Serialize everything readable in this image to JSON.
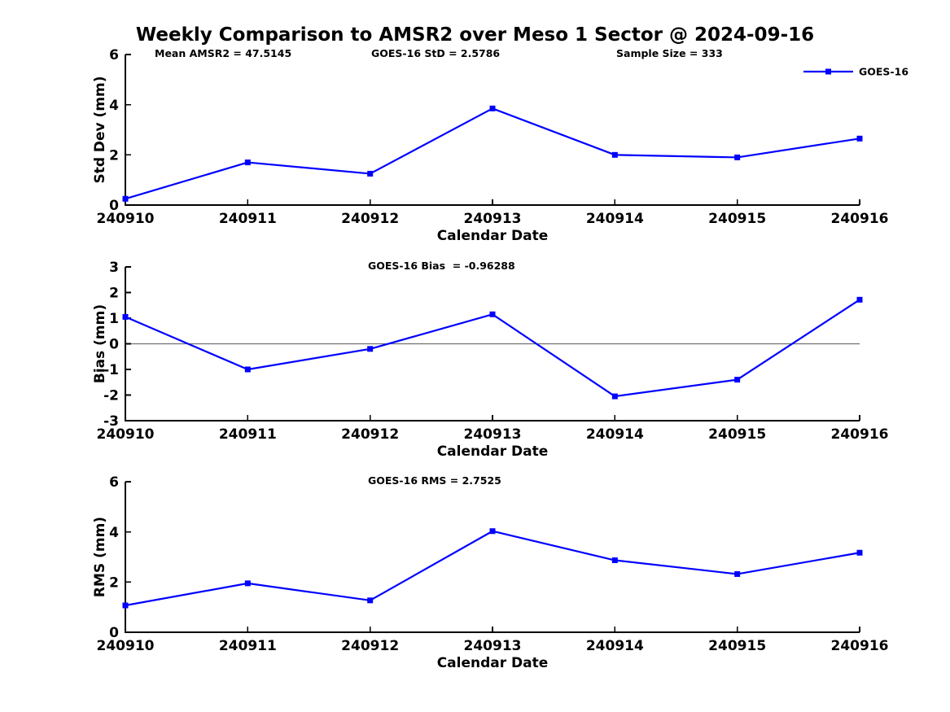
{
  "figure": {
    "title": "Weekly Comparison to AMSR2 over Meso 1 Sector @ 2024-09-16",
    "background": "#FFFFFF"
  },
  "colors": {
    "series_line": "#0000FF",
    "marker": "#0000FF",
    "zero_line": "#707070",
    "axis": "#000000",
    "text": "#000000"
  },
  "legend": {
    "label": "GOES-16",
    "position": "top-right",
    "marker": "square",
    "line_color": "#0000FF"
  },
  "chart_data": [
    {
      "type": "line",
      "name": "std-dev",
      "annotations": [
        "Mean AMSR2 = 47.5145",
        "GOES-16 StD = 2.5786",
        "Sample Size = 333"
      ],
      "xlabel": "Calendar Date",
      "ylabel": "Std Dev (mm)",
      "categories": [
        "240910",
        "240911",
        "240912",
        "240913",
        "240914",
        "240915",
        "240916"
      ],
      "series": [
        {
          "name": "GOES-16",
          "values": [
            0.25,
            1.7,
            1.25,
            3.85,
            2.0,
            1.9,
            2.65
          ]
        }
      ],
      "ylim": [
        0,
        6
      ],
      "yticks": [
        0,
        2,
        4,
        6
      ],
      "grid": false,
      "zero_line": false,
      "show_legend": true
    },
    {
      "type": "line",
      "name": "bias",
      "title": "GOES-16 Bias  = -0.96288",
      "xlabel": "Calendar Date",
      "ylabel": "Bias (mm)",
      "categories": [
        "240910",
        "240911",
        "240912",
        "240913",
        "240914",
        "240915",
        "240916"
      ],
      "series": [
        {
          "name": "GOES-16",
          "values": [
            1.05,
            -1.0,
            -0.2,
            1.15,
            -2.05,
            -1.4,
            1.72
          ]
        }
      ],
      "ylim": [
        -3,
        3
      ],
      "yticks": [
        -3,
        -2,
        -1,
        0,
        1,
        2,
        3
      ],
      "grid": false,
      "zero_line": true,
      "show_legend": false
    },
    {
      "type": "line",
      "name": "rms",
      "title": "GOES-16 RMS = 2.7525",
      "xlabel": "Calendar Date",
      "ylabel": "RMS (mm)",
      "categories": [
        "240910",
        "240911",
        "240912",
        "240913",
        "240914",
        "240915",
        "240916"
      ],
      "series": [
        {
          "name": "GOES-16",
          "values": [
            1.07,
            1.95,
            1.27,
            4.03,
            2.87,
            2.32,
            3.17
          ]
        }
      ],
      "ylim": [
        0,
        6
      ],
      "yticks": [
        0,
        2,
        4,
        6
      ],
      "grid": false,
      "zero_line": false,
      "show_legend": false
    }
  ]
}
